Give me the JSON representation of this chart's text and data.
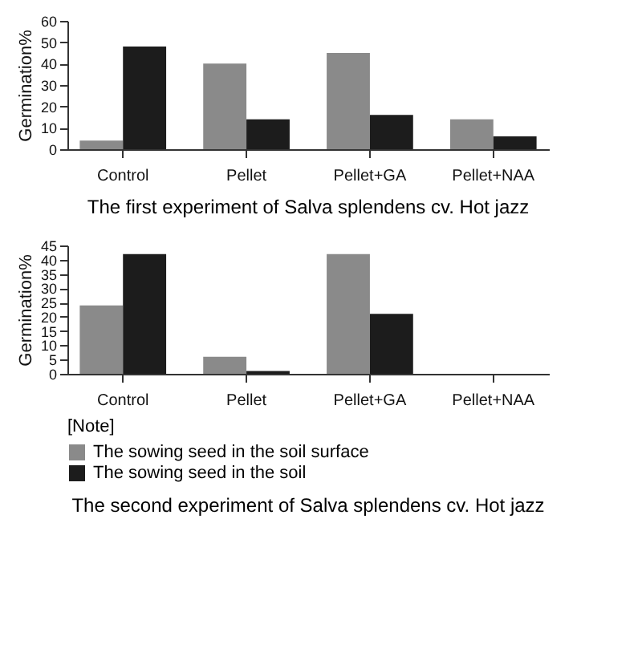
{
  "chart_data": [
    {
      "type": "bar",
      "title": "The first experiment of Salva splendens cv. Hot jazz",
      "ylabel": "Germination%",
      "categories": [
        "Control",
        "Pellet",
        "Pellet+GA",
        "Pellet+NAA"
      ],
      "series": [
        {
          "color": "#8a8a8a",
          "values": [
            4,
            40,
            45,
            14
          ]
        },
        {
          "color": "#1c1c1c",
          "values": [
            48,
            14,
            16,
            6
          ]
        }
      ],
      "ylim": [
        0,
        60
      ],
      "yticks": [
        0,
        10,
        20,
        30,
        40,
        50,
        60
      ],
      "grid": false,
      "legend": false
    },
    {
      "type": "bar",
      "title": "The second experiment of Salva splendens cv. Hot jazz",
      "ylabel": "Germination%",
      "legend_title": "[Note]",
      "categories": [
        "Control",
        "Pellet",
        "Pellet+GA",
        "Pellet+NAA"
      ],
      "series": [
        {
          "name": "The sowing seed in the soil surface",
          "color": "#8a8a8a",
          "values": [
            24,
            6,
            42,
            0
          ]
        },
        {
          "name": "The sowing seed in the soil",
          "color": "#1c1c1c",
          "values": [
            42,
            1,
            21,
            0
          ]
        }
      ],
      "ylim": [
        0,
        45
      ],
      "yticks": [
        0,
        5,
        10,
        15,
        20,
        25,
        30,
        35,
        40,
        45
      ],
      "grid": false,
      "legend": "bottom"
    }
  ]
}
